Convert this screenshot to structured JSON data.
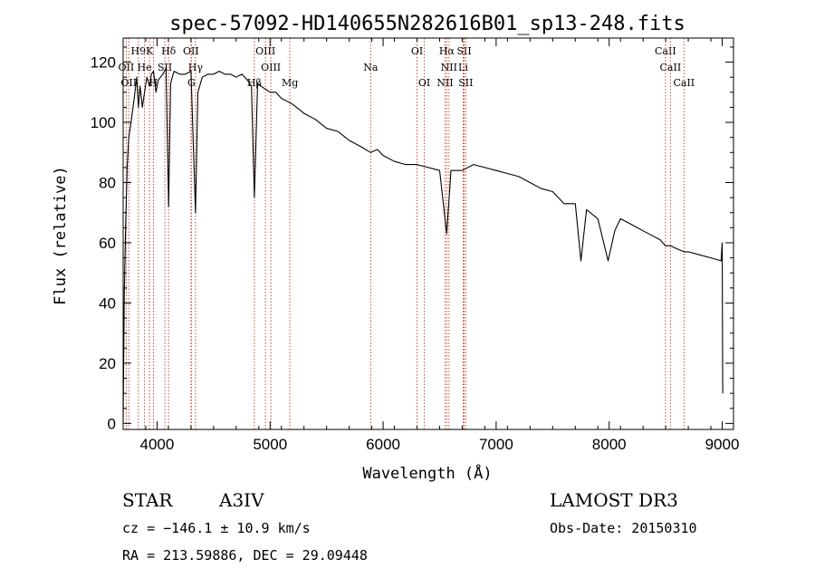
{
  "chart_data": {
    "type": "line",
    "title": "spec-57092-HD140655N282616B01_sp13-248.fits",
    "xlabel": "Wavelength (Å)",
    "ylabel": "Flux (relative)",
    "xlim": [
      3700,
      9100
    ],
    "ylim": [
      -2,
      128
    ],
    "xticks": [
      4000,
      5000,
      6000,
      7000,
      8000,
      9000
    ],
    "yticks": [
      0,
      20,
      40,
      60,
      80,
      100,
      120
    ],
    "grid": false,
    "series": [
      {
        "x": [
          3700,
          3710,
          3722,
          3735,
          3750,
          3770,
          3798,
          3820,
          3835,
          3850,
          3870,
          3889,
          3910,
          3933,
          3950,
          3968,
          3990,
          4010,
          4050,
          4080,
          4102,
          4120,
          4150,
          4200,
          4250,
          4300,
          4340,
          4361,
          4400,
          4450,
          4500,
          4550,
          4600,
          4650,
          4700,
          4750,
          4800,
          4835,
          4861,
          4890,
          4920,
          4960,
          5000,
          5050,
          5100,
          5150,
          5200,
          5300,
          5400,
          5500,
          5600,
          5700,
          5800,
          5890,
          5950,
          6000,
          6100,
          6200,
          6300,
          6400,
          6500,
          6563,
          6600,
          6700,
          6800,
          6900,
          7000,
          7100,
          7200,
          7300,
          7400,
          7500,
          7600,
          7700,
          7750,
          7800,
          7900,
          7990,
          8050,
          8100,
          8200,
          8300,
          8400,
          8450,
          8498,
          8542,
          8600,
          8662,
          8700,
          8800,
          8900,
          8990,
          9000,
          9005
        ],
        "y": [
          0,
          42,
          65,
          85,
          95,
          100,
          108,
          115,
          105,
          112,
          105,
          110,
          115,
          112,
          116,
          117,
          110,
          114,
          116,
          118,
          72,
          113,
          117,
          116,
          116,
          117,
          70,
          110,
          115,
          116,
          116,
          117,
          116,
          116,
          115,
          116,
          114,
          112,
          75,
          113,
          112,
          111,
          110,
          110,
          108,
          107,
          106,
          103,
          101,
          98,
          97,
          94,
          92,
          90,
          91,
          89,
          87,
          86,
          86,
          85,
          84,
          63,
          84,
          84,
          86,
          85,
          84,
          83,
          82,
          80,
          78,
          77,
          73,
          73,
          54,
          71,
          68,
          54,
          64,
          68,
          66,
          64,
          62,
          61,
          59,
          59,
          58,
          57,
          57,
          56,
          55,
          54,
          60,
          10
        ]
      }
    ],
    "spectral_lines": [
      {
        "label": "H9",
        "x": 3835,
        "row": 0
      },
      {
        "label": "K",
        "x": 3933,
        "row": 0
      },
      {
        "label": "Hδ",
        "x": 4102,
        "row": 0
      },
      {
        "label": "OII",
        "x": 4300,
        "row": 0
      },
      {
        "label": "OIII",
        "x": 4959,
        "row": 0
      },
      {
        "label": "OI",
        "x": 6300,
        "row": 0
      },
      {
        "label": "Hα",
        "x": 6563,
        "row": 0
      },
      {
        "label": "SII",
        "x": 6717,
        "row": 0
      },
      {
        "label": "CaII",
        "x": 8498,
        "row": 0
      },
      {
        "label": "OII",
        "x": 3727,
        "row": 1
      },
      {
        "label": "He",
        "x": 3889,
        "row": 1
      },
      {
        "label": "SII",
        "x": 4069,
        "row": 1
      },
      {
        "label": "Hγ",
        "x": 4340,
        "row": 1
      },
      {
        "label": "OIII",
        "x": 5007,
        "row": 1
      },
      {
        "label": "Na",
        "x": 5890,
        "row": 1
      },
      {
        "label": "NII",
        "x": 6583,
        "row": 1
      },
      {
        "label": "Li",
        "x": 6708,
        "row": 1
      },
      {
        "label": "CaII",
        "x": 8542,
        "row": 1
      },
      {
        "label": "OII",
        "x": 3750,
        "row": 2
      },
      {
        "label": "H",
        "x": 3968,
        "row": 2
      },
      {
        "label": "G",
        "x": 4304,
        "row": 2
      },
      {
        "label": "Hβ",
        "x": 4861,
        "row": 2
      },
      {
        "label": "Mg",
        "x": 5175,
        "row": 2
      },
      {
        "label": "OI",
        "x": 6364,
        "row": 2
      },
      {
        "label": "NII",
        "x": 6548,
        "row": 2
      },
      {
        "label": "SII",
        "x": 6731,
        "row": 2
      },
      {
        "label": "CaII",
        "x": 8662,
        "row": 2
      }
    ]
  },
  "info": {
    "object_class": "STAR",
    "subclass": "A3IV",
    "survey": "LAMOST DR3",
    "cz": "cz = −146.1 ± 10.9 km/s",
    "obs_date": "Obs-Date: 20150310",
    "coords": "RA = 213.59886, DEC =  29.09448"
  },
  "colors": {
    "spectrum": "#000000",
    "line_markers": "#c0392b"
  }
}
